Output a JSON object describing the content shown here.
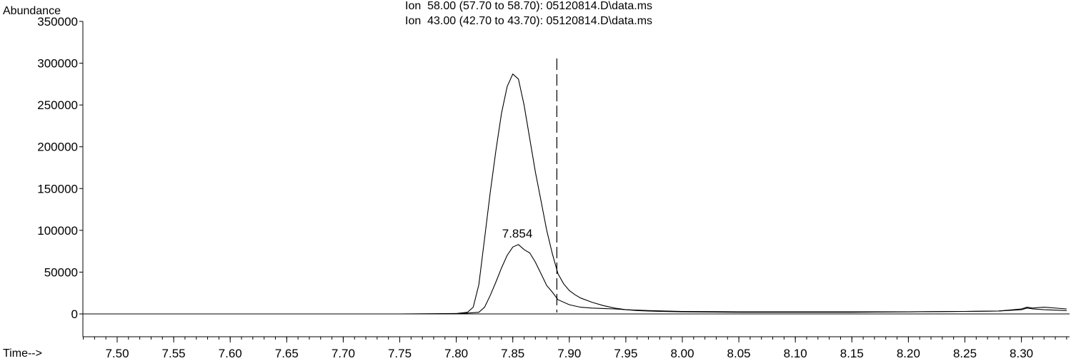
{
  "chart_data": {
    "type": "line",
    "title": "",
    "ylabel": "Abundance",
    "xlabel": "Time-->",
    "legend": [
      "Ion  58.00 (57.70 to 58.70): 05120814.D\\data.ms",
      "Ion  43.00 (42.70 to 43.70): 05120814.D\\data.ms"
    ],
    "xlim": [
      7.47,
      8.34
    ],
    "ylim": [
      -25000,
      350000
    ],
    "x_ticks": [
      7.5,
      7.55,
      7.6,
      7.65,
      7.7,
      7.75,
      7.8,
      7.85,
      7.9,
      7.95,
      8.0,
      8.05,
      8.1,
      8.15,
      8.2,
      8.25,
      8.3
    ],
    "x_tick_labels": [
      "7.50",
      "7.55",
      "7.60",
      "7.65",
      "7.70",
      "7.75",
      "7.80",
      "7.85",
      "7.90",
      "7.95",
      "8.00",
      "8.05",
      "8.10",
      "8.15",
      "8.20",
      "8.25",
      "8.30"
    ],
    "y_ticks": [
      0,
      50000,
      100000,
      150000,
      200000,
      250000,
      300000,
      350000
    ],
    "y_tick_labels": [
      "0",
      "50000",
      "100000",
      "150000",
      "200000",
      "250000",
      "300000",
      "350000"
    ],
    "grid": false,
    "series": [
      {
        "name": "Ion  58.00 (57.70 to 58.70): 05120814.D\\data.ms",
        "x": [
          7.47,
          7.5,
          7.55,
          7.6,
          7.65,
          7.7,
          7.75,
          7.8,
          7.81,
          7.815,
          7.82,
          7.825,
          7.83,
          7.835,
          7.84,
          7.845,
          7.85,
          7.855,
          7.86,
          7.865,
          7.87,
          7.875,
          7.88,
          7.885,
          7.89,
          7.895,
          7.9,
          7.905,
          7.91,
          7.92,
          7.93,
          7.94,
          7.95,
          7.96,
          7.97,
          7.98,
          8.0,
          8.05,
          8.1,
          8.15,
          8.2,
          8.25,
          8.28,
          8.3,
          8.305,
          8.31,
          8.32,
          8.34
        ],
        "values": [
          0,
          0,
          0,
          0,
          0,
          0,
          0,
          500,
          2000,
          8000,
          35000,
          90000,
          145000,
          195000,
          240000,
          272000,
          287000,
          281000,
          250000,
          210000,
          170000,
          135000,
          100000,
          72000,
          48000,
          36000,
          28000,
          23000,
          19000,
          14000,
          10000,
          7000,
          5000,
          4000,
          3500,
          3000,
          2500,
          2000,
          2000,
          2000,
          2500,
          3000,
          3500,
          6000,
          8000,
          7000,
          8000,
          6000
        ]
      },
      {
        "name": "Ion  43.00 (42.70 to 43.70): 05120814.D\\data.ms",
        "x": [
          7.47,
          7.5,
          7.55,
          7.6,
          7.65,
          7.7,
          7.75,
          7.8,
          7.82,
          7.825,
          7.83,
          7.835,
          7.84,
          7.845,
          7.85,
          7.855,
          7.86,
          7.865,
          7.87,
          7.875,
          7.88,
          7.885,
          7.89,
          7.9,
          7.91,
          7.92,
          7.93,
          7.94,
          7.95,
          7.96,
          7.97,
          8.0,
          8.05,
          8.1,
          8.15,
          8.2,
          8.25,
          8.28,
          8.3,
          8.305,
          8.31,
          8.32,
          8.34
        ],
        "values": [
          0,
          0,
          0,
          0,
          0,
          0,
          0,
          0,
          2000,
          8000,
          22000,
          38000,
          55000,
          70000,
          80000,
          83000,
          77000,
          73000,
          62000,
          48000,
          34000,
          26000,
          17000,
          11000,
          8000,
          7000,
          6500,
          6000,
          5000,
          4500,
          4000,
          3000,
          2500,
          2500,
          2500,
          2500,
          3000,
          3500,
          5000,
          7000,
          6000,
          5000,
          4000
        ]
      }
    ],
    "peak_label": {
      "text": "7.854",
      "x": 7.854,
      "y": 83000
    },
    "marker_line_x": 7.889
  }
}
